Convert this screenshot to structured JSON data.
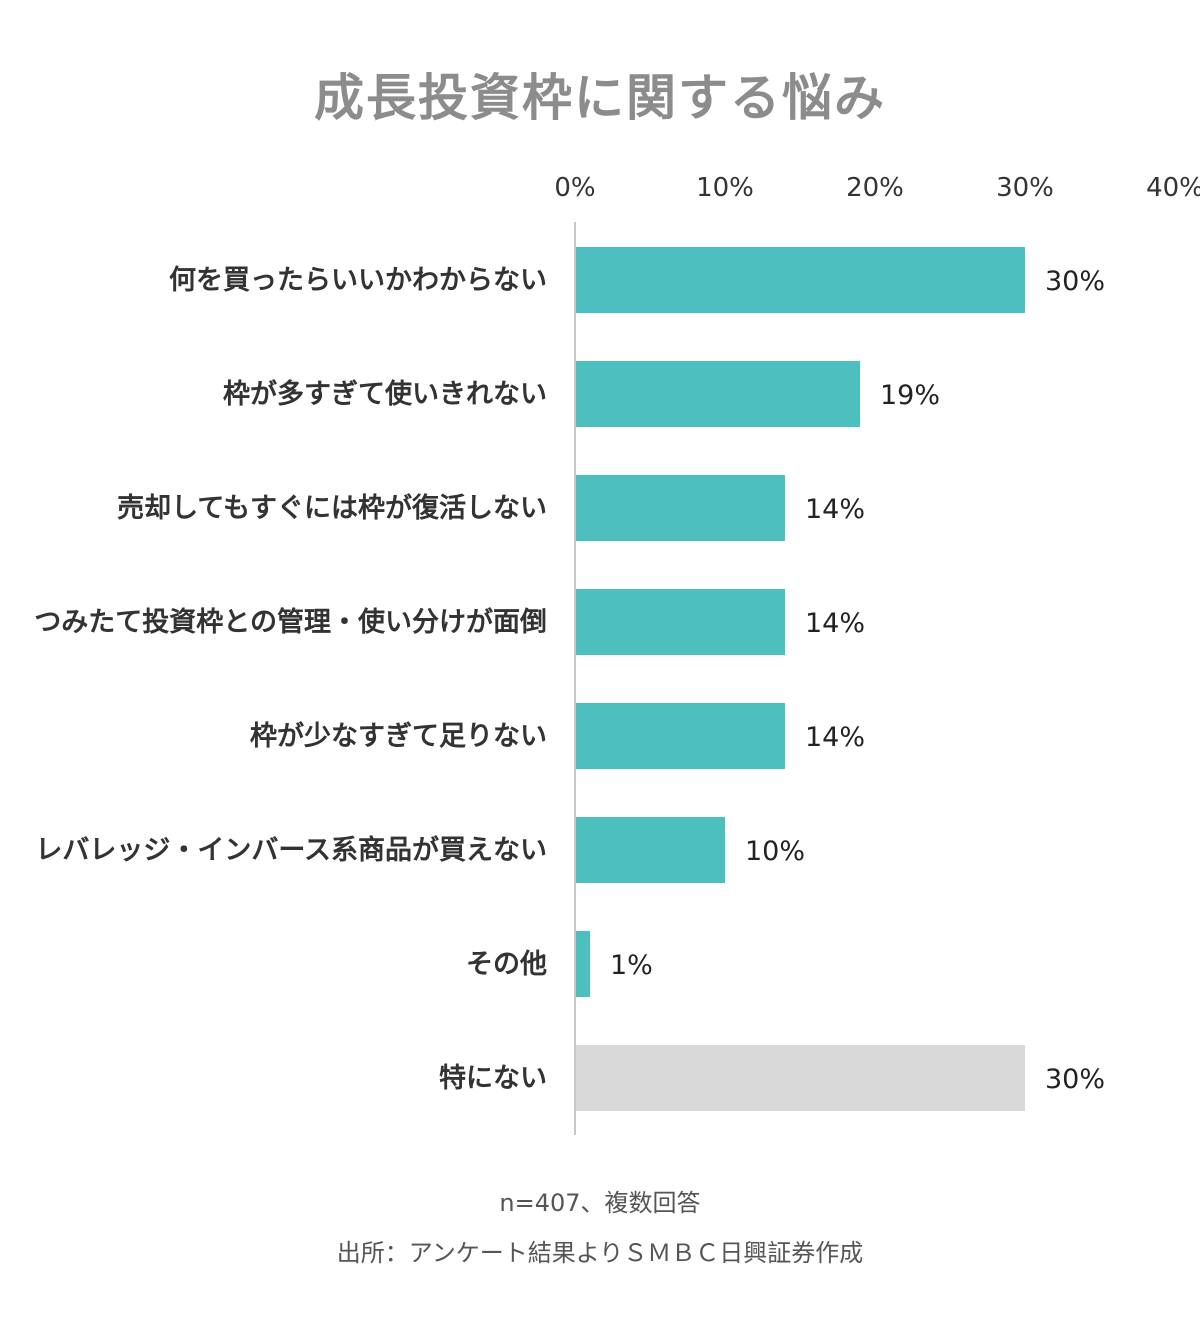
{
  "chart_data": {
    "type": "bar",
    "orientation": "horizontal",
    "title": "成長投資枠に関する悩み",
    "categories": [
      "何を買ったらいいかわからない",
      "枠が多すぎて使いきれない",
      "売却してもすぐには枠が復活しない",
      "つみたて投資枠との管理・使い分けが面倒",
      "枠が少なすぎて足りない",
      "レバレッジ・インバース系商品が買えない",
      "その他",
      "特にない"
    ],
    "values": [
      30,
      19,
      14,
      14,
      14,
      10,
      1,
      30
    ],
    "value_labels": [
      "30%",
      "19%",
      "14%",
      "14%",
      "14%",
      "10%",
      "1%",
      "30%"
    ],
    "bar_colors": [
      "#4dbfbf",
      "#4dbfbf",
      "#4dbfbf",
      "#4dbfbf",
      "#4dbfbf",
      "#4dbfbf",
      "#4dbfbf",
      "#d9d9d9"
    ],
    "xlim": [
      0,
      40
    ],
    "xticks": [
      0,
      10,
      20,
      30,
      40
    ],
    "xtick_labels": [
      "0%",
      "10%",
      "20%",
      "30%",
      "40%"
    ],
    "xaxis_position": "top",
    "grid": false,
    "legend": "none"
  },
  "footer": {
    "sample_note": "n=407、複数回答",
    "source": "出所：アンケート結果よりＳＭＢＣ日興証券作成"
  }
}
